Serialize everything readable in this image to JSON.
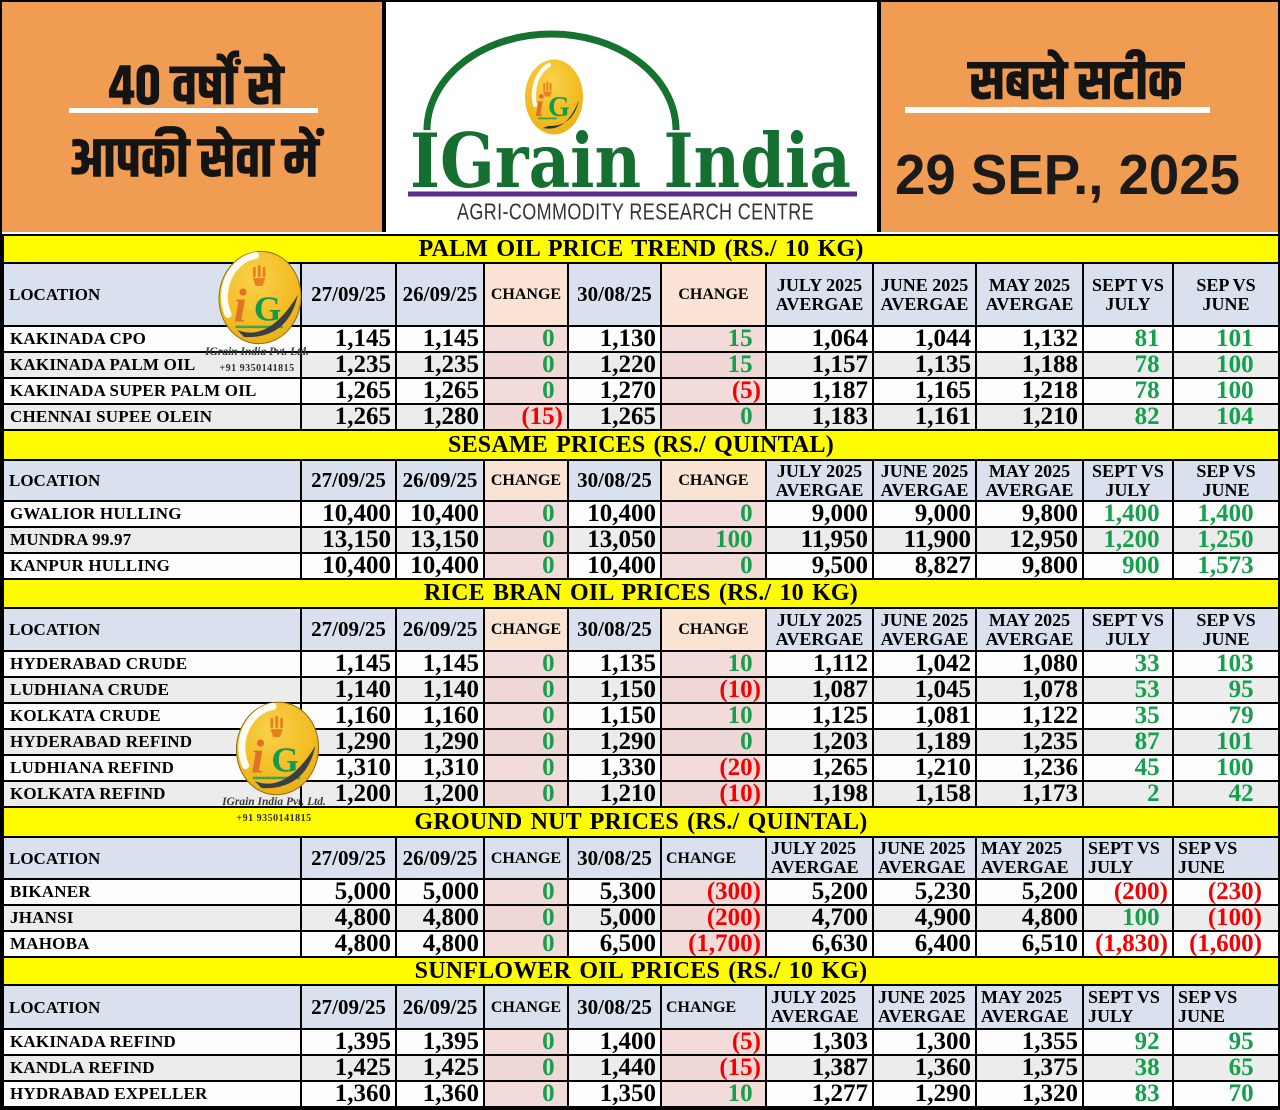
{
  "header": {
    "tagline_line1": "40 वर्षों से",
    "tagline_line2": "आपकी सेवा में",
    "brand_name": "IGrain India",
    "brand_subtitle": "AGRI-COMMODITY RESEARCH CENTRE",
    "slogan": "सबसे सटीक",
    "date": "29 SEP., 2025",
    "logo_monogram_i": "i",
    "logo_monogram_g": "G"
  },
  "watermark": {
    "company": "IGrain India Pvt. Ltd.",
    "phone": "+91 9350141815",
    "monogram_i": "i",
    "monogram_g": "G"
  },
  "colors": {
    "orange": "#F09C52",
    "yellow_band": "#FFFB00",
    "header_row_blue": "#DAE1EE",
    "change_header_pink": "#FAE3D3",
    "change_cell_pink": "#F2DBD9",
    "change_cell_pink_alt": "#EFD7D5",
    "row_alt_gray": "#ECECEC",
    "row_white": "#FDFDFD",
    "positive_green": "#16A04E",
    "negative_red": "#F40000",
    "brand_green": "#156F31",
    "purple_rule": "#5A2D8F",
    "logo_yellow": "#F6C21E"
  },
  "columns": [
    "LOCATION",
    "27/09/25",
    "26/09/25",
    "CHANGE",
    "30/08/25",
    "CHANGE",
    "JULY 2025\nAVERGAE",
    "JUNE 2025\nAVERGAE",
    "MAY 2025\nAVERGAE",
    "SEPT VS\nJULY",
    "SEP VS\nJUNE"
  ],
  "sections": [
    {
      "title": "PALM OIL PRICE TREND (RS./ 10 KG)",
      "header_align": "center",
      "change_header_tinted": true,
      "rows": [
        {
          "location": "KAKINADA CPO",
          "values": [
            "1,145",
            "1,145",
            "0",
            "1,130",
            "15",
            "1,064",
            "1,044",
            "1,132",
            "81",
            "101"
          ]
        },
        {
          "location": "KAKINADA PALM OIL",
          "values": [
            "1,235",
            "1,235",
            "0",
            "1,220",
            "15",
            "1,157",
            "1,135",
            "1,188",
            "78",
            "100"
          ]
        },
        {
          "location": "KAKINADA SUPER PALM OIL",
          "values": [
            "1,265",
            "1,265",
            "0",
            "1,270",
            "(5)",
            "1,187",
            "1,165",
            "1,218",
            "78",
            "100"
          ]
        },
        {
          "location": "CHENNAI SUPEE OLEIN",
          "values": [
            "1,265",
            "1,280",
            "(15)",
            "1,265",
            "0",
            "1,183",
            "1,161",
            "1,210",
            "82",
            "104"
          ]
        }
      ]
    },
    {
      "title": "SESAME PRICES (RS./ QUINTAL)",
      "header_align": "center",
      "change_header_tinted": true,
      "rows": [
        {
          "location": "GWALIOR HULLING",
          "values": [
            "10,400",
            "10,400",
            "0",
            "10,400",
            "0",
            "9,000",
            "9,000",
            "9,800",
            "1,400",
            "1,400"
          ]
        },
        {
          "location": "MUNDRA 99.97",
          "values": [
            "13,150",
            "13,150",
            "0",
            "13,050",
            "100",
            "11,950",
            "11,900",
            "12,950",
            "1,200",
            "1,250"
          ]
        },
        {
          "location": "KANPUR HULLING",
          "values": [
            "10,400",
            "10,400",
            "0",
            "10,400",
            "0",
            "9,500",
            "8,827",
            "9,800",
            "900",
            "1,573"
          ]
        }
      ]
    },
    {
      "title": "RICE BRAN OIL PRICES (RS./ 10 KG)",
      "header_align": "center",
      "change_header_tinted": true,
      "rows": [
        {
          "location": "HYDERABAD CRUDE",
          "values": [
            "1,145",
            "1,145",
            "0",
            "1,135",
            "10",
            "1,112",
            "1,042",
            "1,080",
            "33",
            "103"
          ]
        },
        {
          "location": "LUDHIANA CRUDE",
          "values": [
            "1,140",
            "1,140",
            "0",
            "1,150",
            "(10)",
            "1,087",
            "1,045",
            "1,078",
            "53",
            "95"
          ]
        },
        {
          "location": "KOLKATA CRUDE",
          "values": [
            "1,160",
            "1,160",
            "0",
            "1,150",
            "10",
            "1,125",
            "1,081",
            "1,122",
            "35",
            "79"
          ]
        },
        {
          "location": "HYDERABAD REFIND",
          "values": [
            "1,290",
            "1,290",
            "0",
            "1,290",
            "0",
            "1,203",
            "1,189",
            "1,235",
            "87",
            "101"
          ]
        },
        {
          "location": "LUDHIANA REFIND",
          "values": [
            "1,310",
            "1,310",
            "0",
            "1,330",
            "(20)",
            "1,265",
            "1,210",
            "1,236",
            "45",
            "100"
          ]
        },
        {
          "location": "KOLKATA REFIND",
          "values": [
            "1,200",
            "1,200",
            "0",
            "1,210",
            "(10)",
            "1,198",
            "1,158",
            "1,173",
            "2",
            "42"
          ]
        }
      ]
    },
    {
      "title": "GROUND NUT PRICES (RS./ QUINTAL)",
      "header_align": "left",
      "change_header_tinted": false,
      "rows": [
        {
          "location": "BIKANER",
          "values": [
            "5,000",
            "5,000",
            "0",
            "5,300",
            "(300)",
            "5,200",
            "5,230",
            "5,200",
            "(200)",
            "(230)"
          ]
        },
        {
          "location": "JHANSI",
          "values": [
            "4,800",
            "4,800",
            "0",
            "5,000",
            "(200)",
            "4,700",
            "4,900",
            "4,800",
            "100",
            "(100)"
          ]
        },
        {
          "location": "MAHOBA",
          "values": [
            "4,800",
            "4,800",
            "0",
            "6,500",
            "(1,700)",
            "6,630",
            "6,400",
            "6,510",
            "(1,830)",
            "(1,600)"
          ]
        }
      ]
    },
    {
      "title": "SUNFLOWER OIL PRICES (RS./ 10 KG)",
      "header_align": "left",
      "change_header_tinted": false,
      "rows": [
        {
          "location": "KAKINADA REFIND",
          "values": [
            "1,395",
            "1,395",
            "0",
            "1,400",
            "(5)",
            "1,303",
            "1,300",
            "1,355",
            "92",
            "95"
          ]
        },
        {
          "location": "KANDLA REFIND",
          "values": [
            "1,425",
            "1,425",
            "0",
            "1,440",
            "(15)",
            "1,387",
            "1,360",
            "1,375",
            "38",
            "65"
          ]
        },
        {
          "location": "HYDRABAD EXPELLER",
          "values": [
            "1,360",
            "1,360",
            "0",
            "1,350",
            "10",
            "1,277",
            "1,290",
            "1,320",
            "83",
            "70"
          ]
        }
      ]
    }
  ]
}
